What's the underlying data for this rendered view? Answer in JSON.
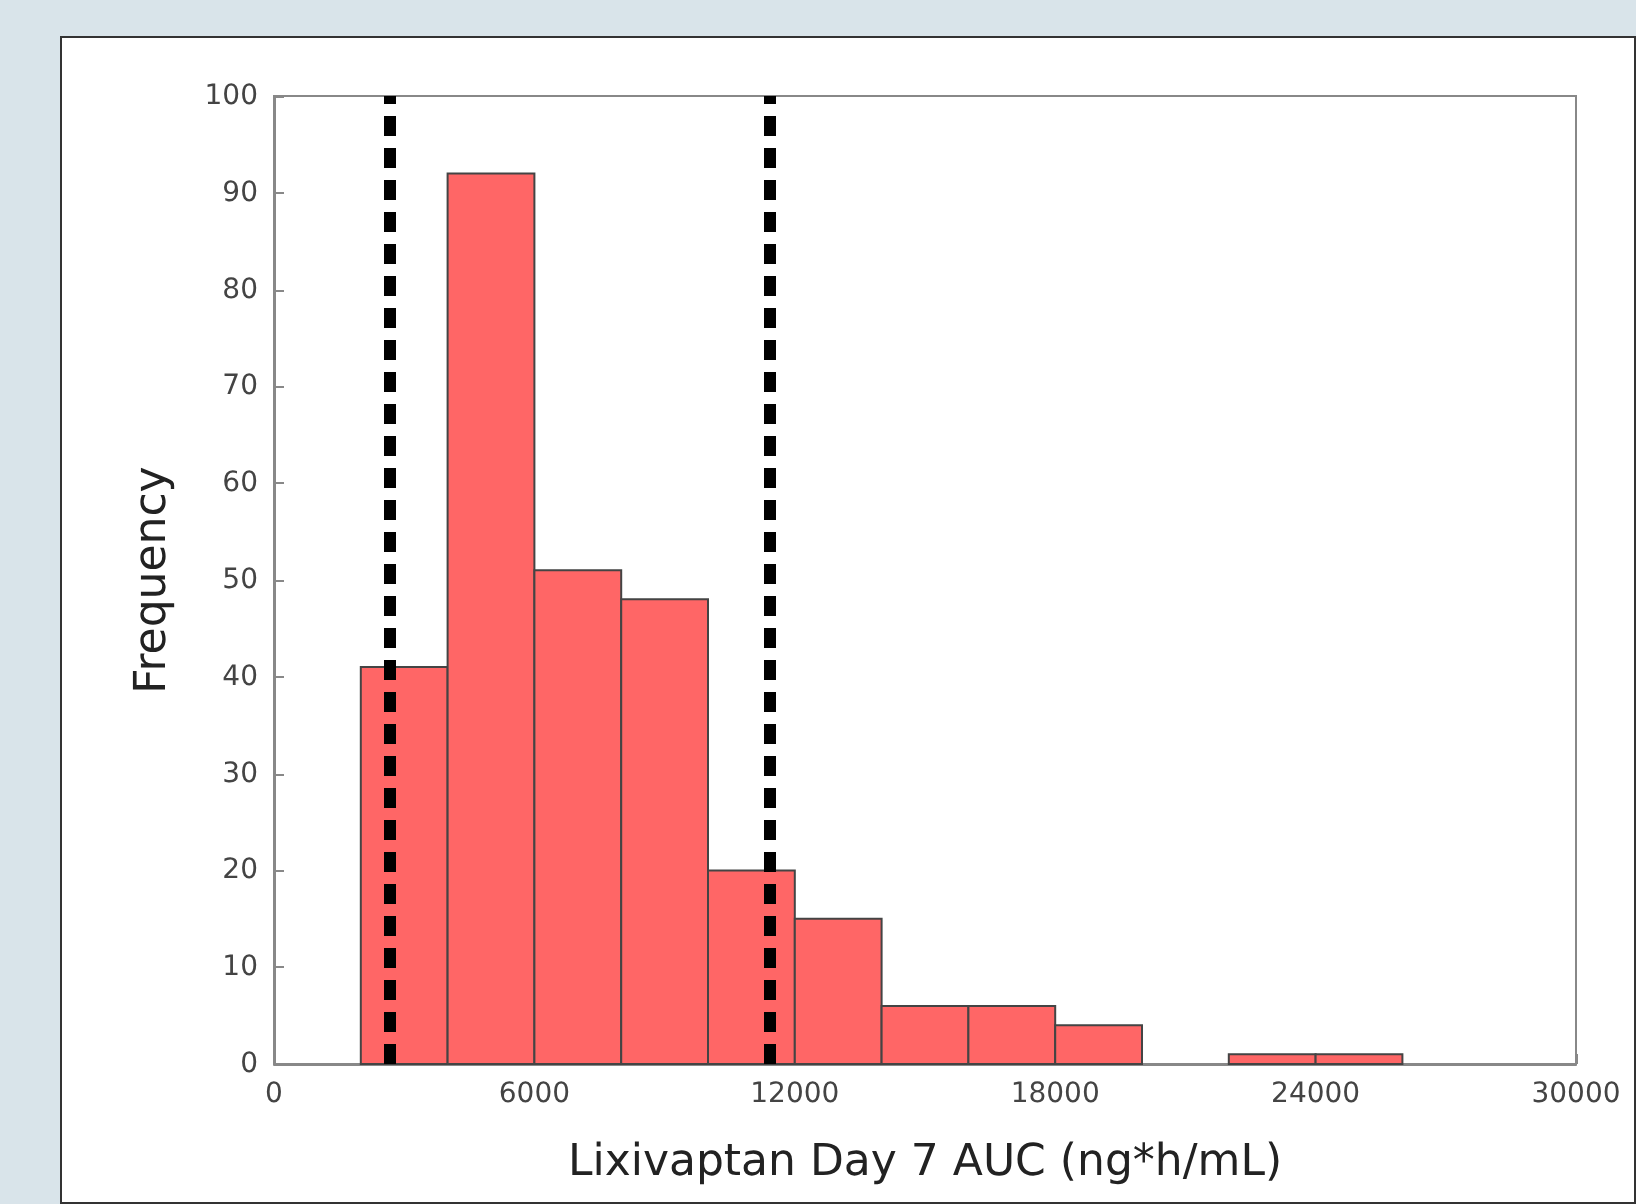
{
  "chart_data": {
    "type": "histogram",
    "xlabel": "Lixivaptan Day 7 AUC (ng*h/mL)",
    "ylabel": "Frequency",
    "bins": [
      2000,
      4000,
      6000,
      8000,
      10000,
      12000,
      14000,
      16000,
      18000,
      20000,
      22000,
      24000,
      26000
    ],
    "values": [
      41,
      92,
      51,
      48,
      20,
      15,
      6,
      6,
      4,
      0,
      1,
      1
    ],
    "color": "#ff6666",
    "xlim": [
      0,
      30000
    ],
    "xticks": [
      0,
      6000,
      12000,
      18000,
      24000,
      30000
    ],
    "ylim": [
      0,
      100
    ],
    "yticks": [
      0,
      10,
      20,
      30,
      40,
      50,
      60,
      70,
      80,
      90,
      100
    ],
    "grid": false,
    "ref_lines": [
      {
        "axis": "x",
        "value": 2650,
        "color": "#000000",
        "line_style": "dashed"
      },
      {
        "axis": "x",
        "value": 11400,
        "color": "#000000",
        "line_style": "dashed"
      }
    ]
  }
}
